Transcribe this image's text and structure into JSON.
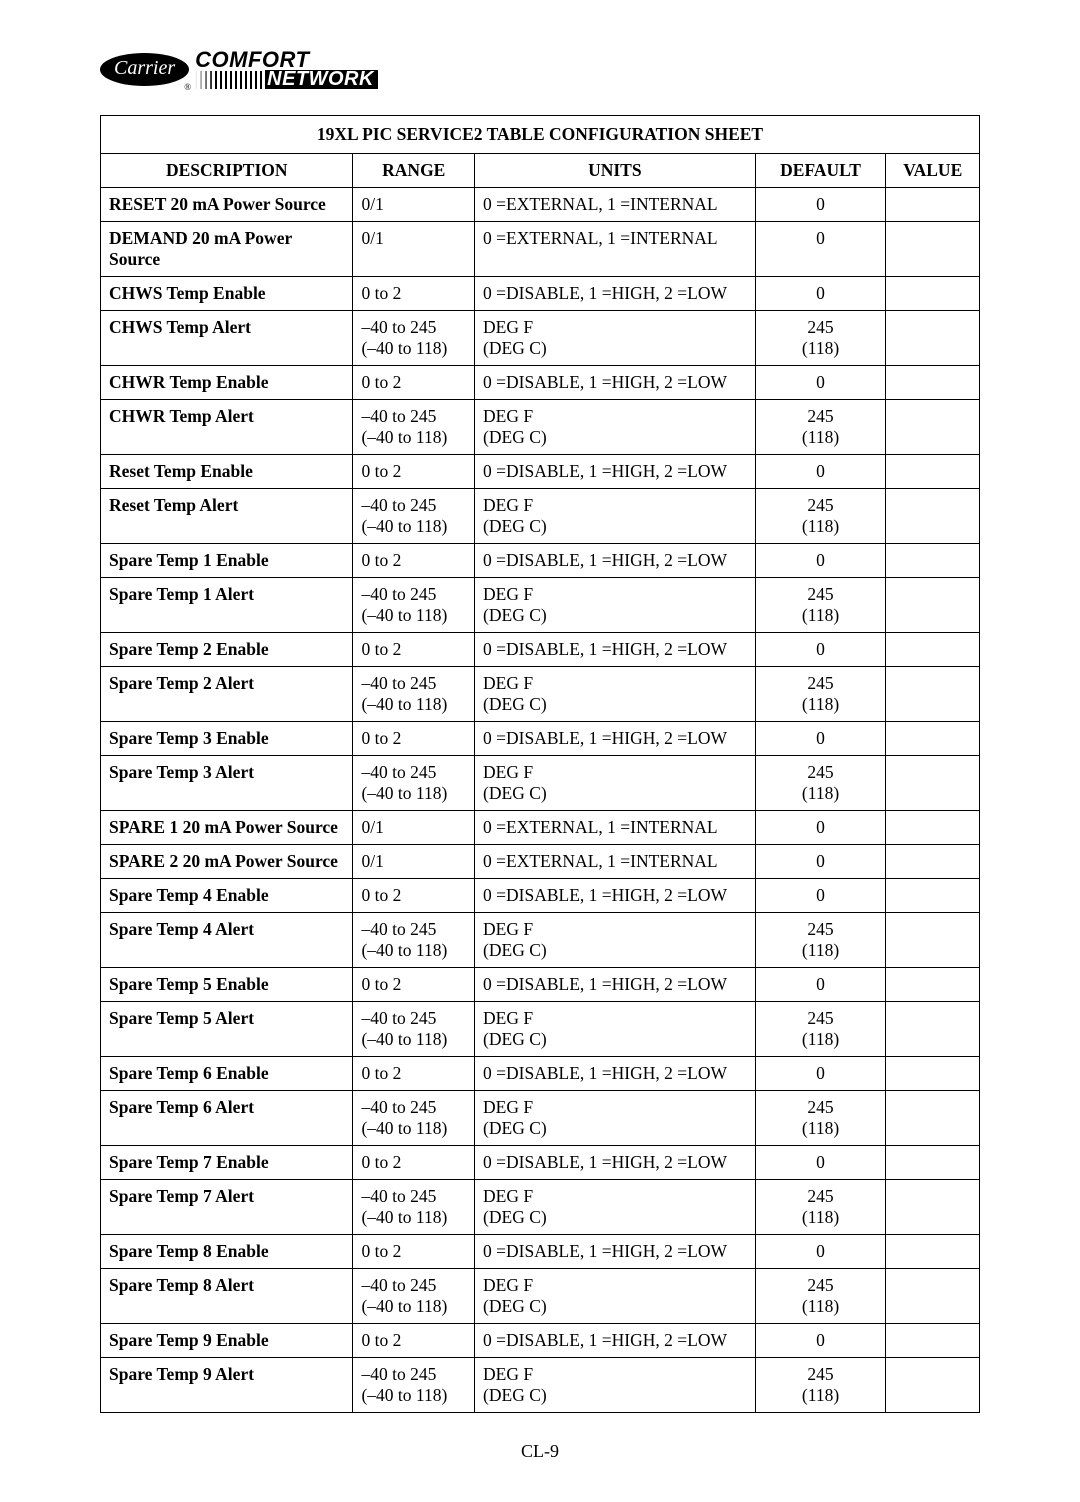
{
  "logo": {
    "brand": "Carrier",
    "line1": "COMFORT",
    "line2": "NETWORK"
  },
  "table": {
    "title": "19XL PIC SERVICE2 TABLE CONFIGURATION SHEET",
    "headers": {
      "description": "DESCRIPTION",
      "range": "RANGE",
      "units": "UNITS",
      "default": "DEFAULT",
      "value": "VALUE"
    },
    "rows": [
      {
        "description": "RESET 20 mA Power Source",
        "range": "0/1",
        "units": "0 =EXTERNAL, 1 =INTERNAL",
        "default": "0",
        "value": ""
      },
      {
        "description": "DEMAND 20 mA Power Source",
        "range": "0/1",
        "units": "0 =EXTERNAL, 1 =INTERNAL",
        "default": "0",
        "value": ""
      },
      {
        "description": "CHWS Temp Enable",
        "range": "0 to 2",
        "units": "0 =DISABLE, 1 =HIGH, 2 =LOW",
        "default": "0",
        "value": ""
      },
      {
        "description": "CHWS Temp Alert",
        "range": "–40 to 245\n(–40 to 118)",
        "units": "DEG F\n(DEG C)",
        "default": "245\n(118)",
        "value": ""
      },
      {
        "description": "CHWR Temp Enable",
        "range": "0 to 2",
        "units": "0 =DISABLE, 1 =HIGH, 2 =LOW",
        "default": "0",
        "value": ""
      },
      {
        "description": "CHWR Temp Alert",
        "range": "–40 to 245\n(–40 to 118)",
        "units": "DEG F\n(DEG C)",
        "default": "245\n(118)",
        "value": ""
      },
      {
        "description": "Reset Temp Enable",
        "range": "0 to 2",
        "units": "0 =DISABLE, 1 =HIGH, 2 =LOW",
        "default": "0",
        "value": ""
      },
      {
        "description": "Reset Temp Alert",
        "range": "–40 to 245\n(–40 to 118)",
        "units": "DEG F\n(DEG C)",
        "default": "245\n(118)",
        "value": ""
      },
      {
        "description": "Spare Temp 1 Enable",
        "range": "0 to 2",
        "units": "0 =DISABLE, 1 =HIGH, 2 =LOW",
        "default": "0",
        "value": ""
      },
      {
        "description": "Spare Temp 1 Alert",
        "range": "–40 to 245\n(–40 to 118)",
        "units": "DEG F\n(DEG C)",
        "default": "245\n(118)",
        "value": ""
      },
      {
        "description": "Spare Temp 2 Enable",
        "range": "0 to 2",
        "units": "0 =DISABLE, 1 =HIGH, 2 =LOW",
        "default": "0",
        "value": ""
      },
      {
        "description": "Spare Temp 2 Alert",
        "range": "–40 to 245\n(–40 to 118)",
        "units": "DEG F\n(DEG C)",
        "default": "245\n(118)",
        "value": ""
      },
      {
        "description": "Spare Temp 3 Enable",
        "range": "0 to 2",
        "units": "0 =DISABLE, 1 =HIGH, 2 =LOW",
        "default": "0",
        "value": ""
      },
      {
        "description": "Spare Temp 3 Alert",
        "range": "–40 to 245\n(–40 to 118)",
        "units": "DEG F\n(DEG C)",
        "default": "245\n(118)",
        "value": ""
      },
      {
        "description": "SPARE 1 20 mA Power Source",
        "range": "0/1",
        "units": "0 =EXTERNAL, 1 =INTERNAL",
        "default": "0",
        "value": ""
      },
      {
        "description": "SPARE 2 20 mA Power Source",
        "range": "0/1",
        "units": "0 =EXTERNAL, 1 =INTERNAL",
        "default": "0",
        "value": ""
      },
      {
        "description": "Spare Temp 4 Enable",
        "range": "0 to 2",
        "units": "0 =DISABLE, 1 =HIGH, 2 =LOW",
        "default": "0",
        "value": ""
      },
      {
        "description": "Spare Temp 4 Alert",
        "range": "–40 to 245\n(–40 to 118)",
        "units": "DEG F\n(DEG C)",
        "default": "245\n(118)",
        "value": ""
      },
      {
        "description": "Spare Temp 5 Enable",
        "range": "0 to 2",
        "units": "0 =DISABLE, 1 =HIGH, 2 =LOW",
        "default": "0",
        "value": ""
      },
      {
        "description": "Spare Temp 5 Alert",
        "range": "–40 to 245\n(–40 to 118)",
        "units": "DEG F\n(DEG C)",
        "default": "245\n(118)",
        "value": ""
      },
      {
        "description": "Spare Temp 6 Enable",
        "range": "0 to 2",
        "units": "0 =DISABLE, 1 =HIGH, 2 =LOW",
        "default": "0",
        "value": ""
      },
      {
        "description": "Spare Temp 6 Alert",
        "range": "–40 to 245\n(–40 to 118)",
        "units": "DEG F\n(DEG C)",
        "default": "245\n(118)",
        "value": ""
      },
      {
        "description": "Spare Temp 7 Enable",
        "range": "0 to 2",
        "units": "0 =DISABLE, 1 =HIGH, 2 =LOW",
        "default": "0",
        "value": ""
      },
      {
        "description": "Spare Temp 7 Alert",
        "range": "–40 to 245\n(–40 to 118)",
        "units": "DEG F\n(DEG C)",
        "default": "245\n(118)",
        "value": ""
      },
      {
        "description": "Spare Temp 8 Enable",
        "range": "0 to 2",
        "units": "0 =DISABLE, 1 =HIGH, 2 =LOW",
        "default": "0",
        "value": ""
      },
      {
        "description": "Spare Temp 8 Alert",
        "range": "–40 to 245\n(–40 to 118)",
        "units": "DEG F\n(DEG C)",
        "default": "245\n(118)",
        "value": ""
      },
      {
        "description": "Spare Temp 9 Enable",
        "range": "0 to 2",
        "units": "0 =DISABLE, 1 =HIGH, 2 =LOW",
        "default": "0",
        "value": ""
      },
      {
        "description": "Spare Temp 9 Alert",
        "range": "–40 to 245\n(–40 to 118)",
        "units": "DEG F\n(DEG C)",
        "default": "245\n(118)",
        "value": ""
      }
    ]
  },
  "footer": "CL-9"
}
